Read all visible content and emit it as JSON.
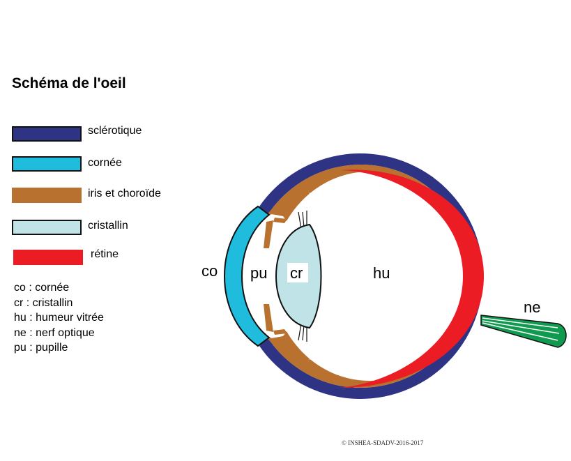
{
  "title": "Schéma de l'oeil",
  "colors": {
    "sclera": "#2e3384",
    "cornea": "#1fbcdd",
    "iris_choroid": "#b8712f",
    "lens": "#bfe3e6",
    "retina": "#ec1c24",
    "optic_nerve": "#0f9a50"
  },
  "legend": [
    {
      "label": "sclérotique",
      "color": "#2e3384"
    },
    {
      "label": "cornée",
      "color": "#1fbcdd"
    },
    {
      "label": "iris et choroïde",
      "color": "#b8712f"
    },
    {
      "label": "cristallin",
      "color": "#bfe3e6"
    },
    {
      "label": "rétine",
      "color": "#ec1c24"
    }
  ],
  "abbreviations": [
    "co : cornée",
    "cr : cristallin",
    "hu : humeur vitrée",
    "ne : nerf optique",
    "pu : pupille"
  ],
  "labels": {
    "co": "co",
    "pu": "pu",
    "cr": "cr",
    "hu": "hu",
    "ne": "ne"
  },
  "copyright": "INSHEA-SDADV-2016-2017"
}
